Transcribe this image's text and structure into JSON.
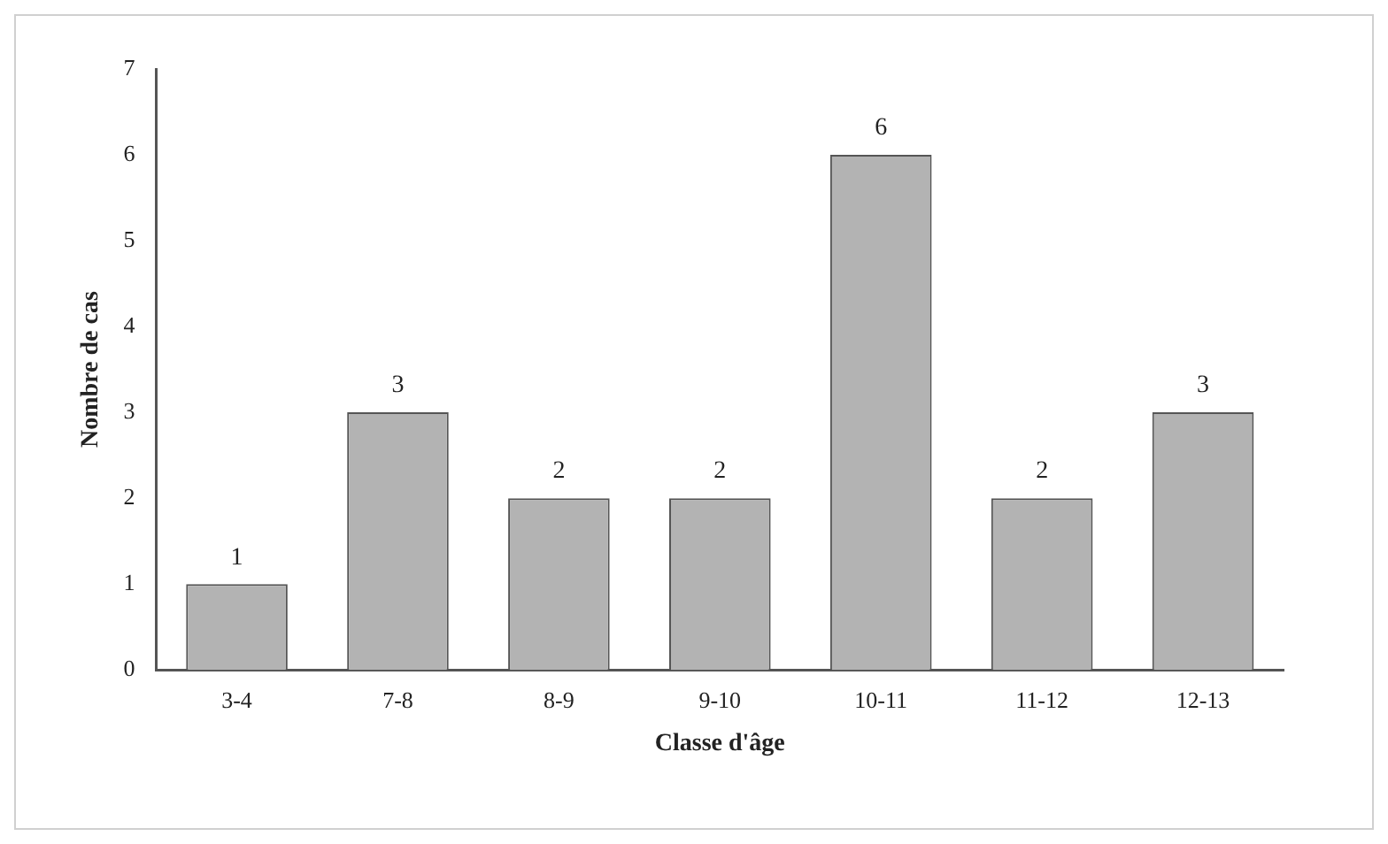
{
  "chart_data": {
    "type": "bar",
    "xlabel": "Classe d'âge",
    "ylabel": "Nombre de cas",
    "categories": [
      "3-4",
      "7-8",
      "8-9",
      "9-10",
      "10-11",
      "11-12",
      "12-13"
    ],
    "values": [
      1,
      3,
      2,
      2,
      6,
      2,
      3
    ],
    "color": "#b3b3b3",
    "ylim": [
      0,
      7
    ],
    "yticks": [
      0,
      1,
      2,
      3,
      4,
      5,
      6,
      7
    ],
    "grid": false,
    "legend": false,
    "data_labels": true
  }
}
